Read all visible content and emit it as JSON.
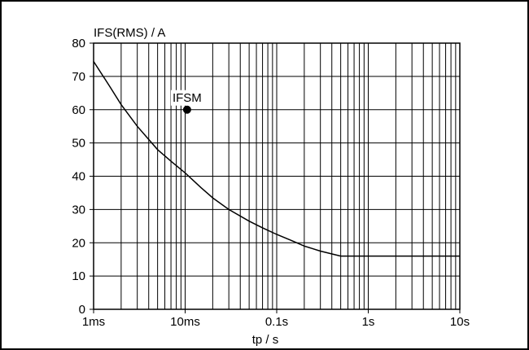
{
  "chart_data": {
    "type": "line",
    "title": "",
    "ylabel": "IFS(RMS) / A",
    "xlabel": "tp / s",
    "x_scale": "log",
    "x_unit": "s",
    "xlim": [
      0.001,
      10
    ],
    "ylim": [
      0,
      80
    ],
    "grid": true,
    "x_ticks": [
      {
        "value": 0.001,
        "label": "1ms"
      },
      {
        "value": 0.01,
        "label": "10ms"
      },
      {
        "value": 0.1,
        "label": "0.1s"
      },
      {
        "value": 1,
        "label": "1s"
      },
      {
        "value": 10,
        "label": "10s"
      }
    ],
    "y_ticks": [
      0,
      10,
      20,
      30,
      40,
      50,
      60,
      70,
      80
    ],
    "series": [
      {
        "color": "#000000",
        "x": [
          0.001,
          0.0015,
          0.002,
          0.003,
          0.005,
          0.007,
          0.01,
          0.015,
          0.02,
          0.03,
          0.05,
          0.07,
          0.1,
          0.15,
          0.2,
          0.3,
          0.5,
          0.7,
          1,
          2,
          5,
          10
        ],
        "y": [
          74.5,
          67,
          61.5,
          55,
          48,
          44.5,
          41,
          36.5,
          33.5,
          30,
          26.5,
          24.5,
          22.5,
          20.5,
          19,
          17.5,
          16,
          16,
          16,
          16,
          16,
          16
        ]
      }
    ],
    "annotations": [
      {
        "label": "IFSM",
        "x": 0.0105,
        "y": 60,
        "marker": "dot"
      }
    ]
  }
}
